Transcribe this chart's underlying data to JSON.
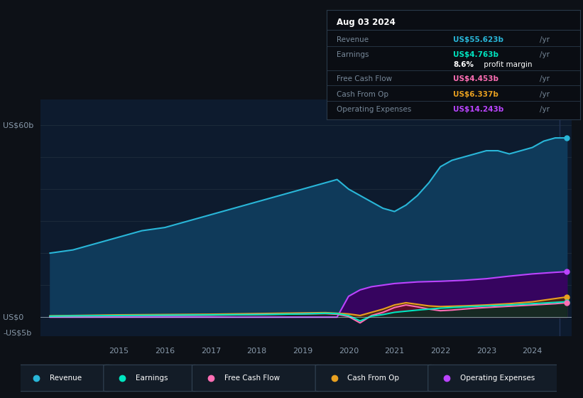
{
  "background_color": "#0d1117",
  "plot_bg_color": "#0d1b2e",
  "ylabel_top": "US$60b",
  "ylabel_zero": "US$0",
  "ylabel_neg": "-US$5b",
  "ylim": [
    -6,
    68
  ],
  "xlim_start": 2013.3,
  "xlim_end": 2024.85,
  "revenue": {
    "x": [
      2013.5,
      2014.0,
      2014.5,
      2015.0,
      2015.5,
      2016.0,
      2016.5,
      2017.0,
      2017.5,
      2018.0,
      2018.5,
      2019.0,
      2019.25,
      2019.5,
      2019.75,
      2020.0,
      2020.25,
      2020.5,
      2020.75,
      2021.0,
      2021.25,
      2021.5,
      2021.75,
      2022.0,
      2022.25,
      2022.5,
      2022.75,
      2023.0,
      2023.25,
      2023.5,
      2023.75,
      2024.0,
      2024.25,
      2024.5,
      2024.75
    ],
    "y": [
      20,
      21,
      23,
      25,
      27,
      28,
      30,
      32,
      34,
      36,
      38,
      40,
      41,
      42,
      43,
      40,
      38,
      36,
      34,
      33,
      35,
      38,
      42,
      47,
      49,
      50,
      51,
      52,
      52,
      51,
      52,
      53,
      55,
      56,
      56
    ],
    "color": "#29b6d8",
    "fill_color": "#0f3a5a",
    "label": "Revenue"
  },
  "earnings": {
    "x": [
      2013.5,
      2014.0,
      2015.0,
      2016.0,
      2017.0,
      2018.0,
      2019.0,
      2019.5,
      2019.75,
      2020.0,
      2020.25,
      2020.5,
      2020.75,
      2021.0,
      2021.5,
      2022.0,
      2022.5,
      2023.0,
      2023.5,
      2024.0,
      2024.5,
      2024.75
    ],
    "y": [
      0.3,
      0.4,
      0.5,
      0.6,
      0.7,
      0.8,
      1.0,
      1.2,
      1.1,
      0.5,
      -1.2,
      0.3,
      0.8,
      1.5,
      2.2,
      2.8,
      3.2,
      3.5,
      3.8,
      4.2,
      4.6,
      4.8
    ],
    "color": "#00e5c0",
    "fill_color": "#004433",
    "label": "Earnings"
  },
  "free_cash_flow": {
    "x": [
      2013.5,
      2014.0,
      2015.0,
      2016.0,
      2017.0,
      2018.0,
      2019.0,
      2019.5,
      2019.75,
      2020.0,
      2020.25,
      2020.5,
      2020.75,
      2021.0,
      2021.25,
      2021.5,
      2021.75,
      2022.0,
      2022.25,
      2022.5,
      2022.75,
      2023.0,
      2023.5,
      2024.0,
      2024.5,
      2024.75
    ],
    "y": [
      0.2,
      0.3,
      0.4,
      0.5,
      0.6,
      0.8,
      1.0,
      1.1,
      0.9,
      0.2,
      -1.8,
      0.5,
      1.5,
      3.0,
      3.8,
      3.2,
      2.5,
      2.0,
      2.2,
      2.5,
      2.8,
      3.0,
      3.4,
      3.8,
      4.2,
      4.5
    ],
    "color": "#ff6eb4",
    "fill_color": "#661133",
    "label": "Free Cash Flow"
  },
  "cash_from_op": {
    "x": [
      2013.5,
      2014.0,
      2015.0,
      2016.0,
      2017.0,
      2018.0,
      2019.0,
      2019.5,
      2020.0,
      2020.25,
      2020.5,
      2020.75,
      2021.0,
      2021.25,
      2021.5,
      2021.75,
      2022.0,
      2022.5,
      2023.0,
      2023.5,
      2024.0,
      2024.5,
      2024.75
    ],
    "y": [
      0.4,
      0.5,
      0.7,
      0.8,
      0.9,
      1.1,
      1.3,
      1.4,
      1.0,
      0.5,
      1.5,
      2.5,
      3.8,
      4.5,
      4.0,
      3.5,
      3.3,
      3.5,
      3.8,
      4.2,
      4.8,
      5.8,
      6.3
    ],
    "color": "#e8a020",
    "fill_color": "#664400",
    "label": "Cash From Op"
  },
  "operating_expenses": {
    "x": [
      2013.5,
      2014.0,
      2015.0,
      2016.0,
      2017.0,
      2018.0,
      2019.0,
      2019.5,
      2019.75,
      2020.0,
      2020.25,
      2020.5,
      2020.75,
      2021.0,
      2021.5,
      2022.0,
      2022.5,
      2023.0,
      2023.5,
      2024.0,
      2024.5,
      2024.75
    ],
    "y": [
      0.0,
      0.0,
      0.0,
      0.0,
      0.0,
      0.0,
      0.0,
      0.0,
      0.0,
      6.5,
      8.5,
      9.5,
      10.0,
      10.5,
      11.0,
      11.2,
      11.5,
      12.0,
      12.8,
      13.5,
      14.0,
      14.2
    ],
    "color": "#bb44ff",
    "fill_color": "#3d0066",
    "label": "Operating Expenses"
  },
  "tooltip_date": "Aug 03 2024",
  "tooltip_rows": [
    {
      "label": "Revenue",
      "value": "US$55.623b",
      "unit": "/yr",
      "value_color": "#29b6d8",
      "sub": null
    },
    {
      "label": "Earnings",
      "value": "US$4.763b",
      "unit": "/yr",
      "value_color": "#00e5c0",
      "sub": "8.6% profit margin"
    },
    {
      "label": "Free Cash Flow",
      "value": "US$4.453b",
      "unit": "/yr",
      "value_color": "#ff6eb4",
      "sub": null
    },
    {
      "label": "Cash From Op",
      "value": "US$6.337b",
      "unit": "/yr",
      "value_color": "#e8a020",
      "sub": null
    },
    {
      "label": "Operating Expenses",
      "value": "US$14.243b",
      "unit": "/yr",
      "value_color": "#bb44ff",
      "sub": null
    }
  ],
  "legend": [
    {
      "label": "Revenue",
      "color": "#29b6d8"
    },
    {
      "label": "Earnings",
      "color": "#00e5c0"
    },
    {
      "label": "Free Cash Flow",
      "color": "#ff6eb4"
    },
    {
      "label": "Cash From Op",
      "color": "#e8a020"
    },
    {
      "label": "Operating Expenses",
      "color": "#bb44ff"
    }
  ],
  "grid_color": "#1e2d3d",
  "zero_line_color": "#ccddee",
  "text_color": "#8899aa",
  "x_tick_years": [
    2015,
    2016,
    2017,
    2018,
    2019,
    2020,
    2021,
    2022,
    2023,
    2024
  ]
}
